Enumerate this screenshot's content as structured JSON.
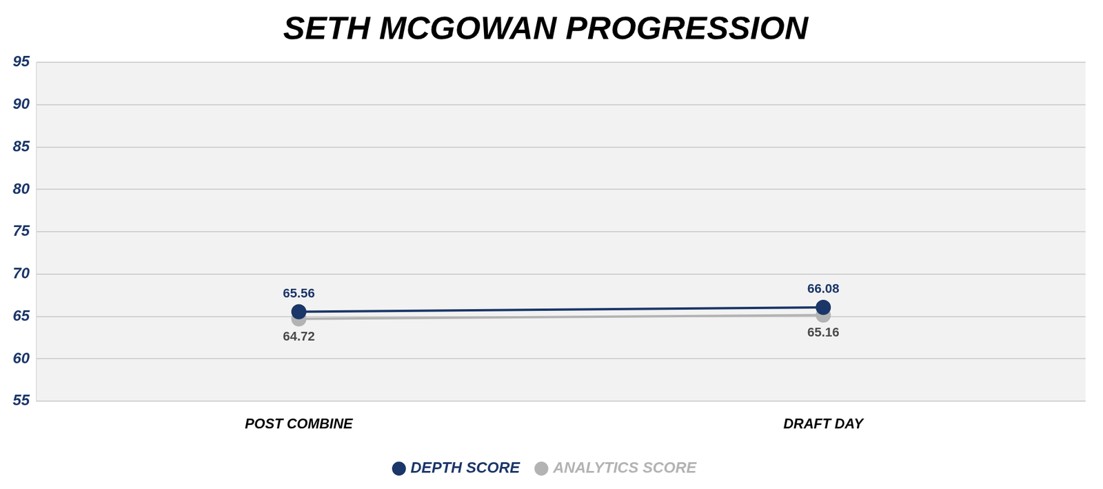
{
  "chart_data": {
    "type": "line",
    "title": "SETH MCGOWAN PROGRESSION",
    "categories": [
      "POST COMBINE",
      "DRAFT DAY"
    ],
    "series": [
      {
        "name": "DEPTH SCORE",
        "color": "#1b3668",
        "values": [
          65.56,
          66.08
        ],
        "marker": "circle"
      },
      {
        "name": "ANALYTICS SCORE",
        "color": "#b3b3b3",
        "values": [
          64.72,
          65.16
        ],
        "marker": "circle"
      }
    ],
    "ylim": [
      55,
      95
    ],
    "yticks": [
      55,
      60,
      65,
      70,
      75,
      80,
      85,
      90,
      95
    ],
    "grid": true,
    "legend": "bottom",
    "data_labels": true
  }
}
